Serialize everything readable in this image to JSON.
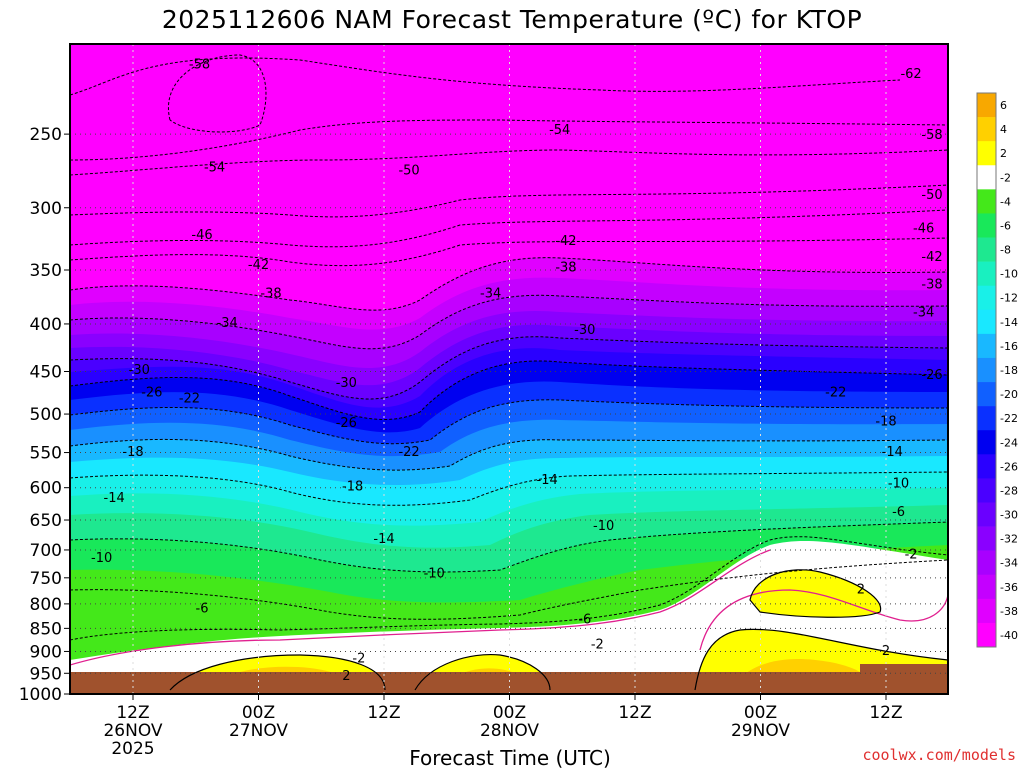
{
  "chart_data": {
    "type": "heatmap",
    "title": "2025112606 NAM Forecast Temperature (ºC) for KTOP",
    "xlabel": "Forecast Time (UTC)",
    "ylabel": "",
    "credit": "coolwx.com/models",
    "y_scale": "log",
    "ylim": [
      1000,
      200
    ],
    "y_ticks": [
      250,
      300,
      350,
      400,
      450,
      500,
      550,
      600,
      650,
      700,
      750,
      800,
      850,
      900,
      950,
      1000
    ],
    "x_ticks": [
      {
        "lines": [
          "12Z",
          "26NOV",
          "2025"
        ]
      },
      {
        "lines": [
          "00Z",
          "27NOV"
        ]
      },
      {
        "lines": [
          "12Z"
        ]
      },
      {
        "lines": [
          "00Z",
          "28NOV"
        ]
      },
      {
        "lines": [
          "12Z"
        ]
      },
      {
        "lines": [
          "00Z",
          "29NOV"
        ]
      },
      {
        "lines": [
          "12Z"
        ]
      }
    ],
    "x_grid": "dotted",
    "y_grid": "dotted",
    "colorbar": {
      "unit": "ºC",
      "labels": [
        "6",
        "4",
        "2",
        "-2",
        "-4",
        "-6",
        "-8",
        "-10",
        "-12",
        "-14",
        "-16",
        "-18",
        "-20",
        "-22",
        "-24",
        "-26",
        "-28",
        "-30",
        "-32",
        "-34",
        "-36",
        "-38",
        "-40"
      ],
      "colors": [
        "#f8a800",
        "#ffd000",
        "#ffff00",
        "#ffffff",
        "#44e81a",
        "#19e85a",
        "#1ee890",
        "#19f0c0",
        "#19f0e8",
        "#19e8ff",
        "#19b8ff",
        "#1990ff",
        "#1060ff",
        "#0a30ff",
        "#0000f0",
        "#2a00ff",
        "#4a00ff",
        "#6a00ff",
        "#8a00ff",
        "#a800ff",
        "#c400ff",
        "#e000ff",
        "#ff00ff"
      ]
    },
    "contour_labels": [
      {
        "text": "-58",
        "x": 0.53,
        "p": 210
      },
      {
        "text": "-62",
        "x": 6.2,
        "p": 215
      },
      {
        "text": "-54",
        "x": 3.4,
        "p": 247
      },
      {
        "text": "-58",
        "x": 6.6,
        "p": 250
      },
      {
        "text": "-54",
        "x": 0.65,
        "p": 271
      },
      {
        "text": "-50",
        "x": 2.2,
        "p": 273
      },
      {
        "text": "-50",
        "x": 6.4,
        "p": 290
      },
      {
        "text": "-46",
        "x": 0.55,
        "p": 320
      },
      {
        "text": "-46",
        "x": 6.3,
        "p": 315
      },
      {
        "text": "-42",
        "x": 1.0,
        "p": 345
      },
      {
        "text": "-42",
        "x": 3.45,
        "p": 325
      },
      {
        "text": "-42",
        "x": 6.45,
        "p": 338
      },
      {
        "text": "-38",
        "x": 1.1,
        "p": 370
      },
      {
        "text": "-38",
        "x": 3.45,
        "p": 347
      },
      {
        "text": "-38",
        "x": 6.45,
        "p": 362
      },
      {
        "text": "-34",
        "x": 0.75,
        "p": 398
      },
      {
        "text": "-34",
        "x": 2.85,
        "p": 370
      },
      {
        "text": "-34",
        "x": 6.3,
        "p": 388
      },
      {
        "text": "-30",
        "x": 3.6,
        "p": 405
      },
      {
        "text": "-30",
        "x": 1.7,
        "p": 462
      },
      {
        "text": "-30",
        "x": 0.05,
        "p": 447
      },
      {
        "text": "-26",
        "x": 0.15,
        "p": 473
      },
      {
        "text": "-26",
        "x": 1.7,
        "p": 510
      },
      {
        "text": "-26",
        "x": 6.45,
        "p": 453
      },
      {
        "text": "-22",
        "x": 0.45,
        "p": 480
      },
      {
        "text": "-22",
        "x": 2.2,
        "p": 548
      },
      {
        "text": "-22",
        "x": 5.6,
        "p": 473
      },
      {
        "text": "-18",
        "x": 0.0,
        "p": 548
      },
      {
        "text": "-18",
        "x": 1.75,
        "p": 597
      },
      {
        "text": "-18",
        "x": 6.0,
        "p": 508
      },
      {
        "text": "-14",
        "x": -0.15,
        "p": 614
      },
      {
        "text": "-14",
        "x": 3.3,
        "p": 587
      },
      {
        "text": "-14",
        "x": 6.05,
        "p": 548
      },
      {
        "text": "-14",
        "x": 2.0,
        "p": 680
      },
      {
        "text": "-10",
        "x": -0.25,
        "p": 712
      },
      {
        "text": "-10",
        "x": 2.4,
        "p": 740
      },
      {
        "text": "-10",
        "x": 3.75,
        "p": 658
      },
      {
        "text": "-10",
        "x": 6.1,
        "p": 592
      },
      {
        "text": "-6",
        "x": 0.55,
        "p": 807
      },
      {
        "text": "-6",
        "x": 3.6,
        "p": 829
      },
      {
        "text": "-6",
        "x": 6.1,
        "p": 636
      },
      {
        "text": "-2",
        "x": 1.8,
        "p": 914
      },
      {
        "text": "-2",
        "x": 3.7,
        "p": 883
      },
      {
        "text": "-2",
        "x": 6.2,
        "p": 706
      },
      {
        "text": "2",
        "x": 1.7,
        "p": 954
      },
      {
        "text": "2",
        "x": 6.0,
        "p": 897
      },
      {
        "text": "2",
        "x": 5.8,
        "p": 770
      }
    ]
  }
}
